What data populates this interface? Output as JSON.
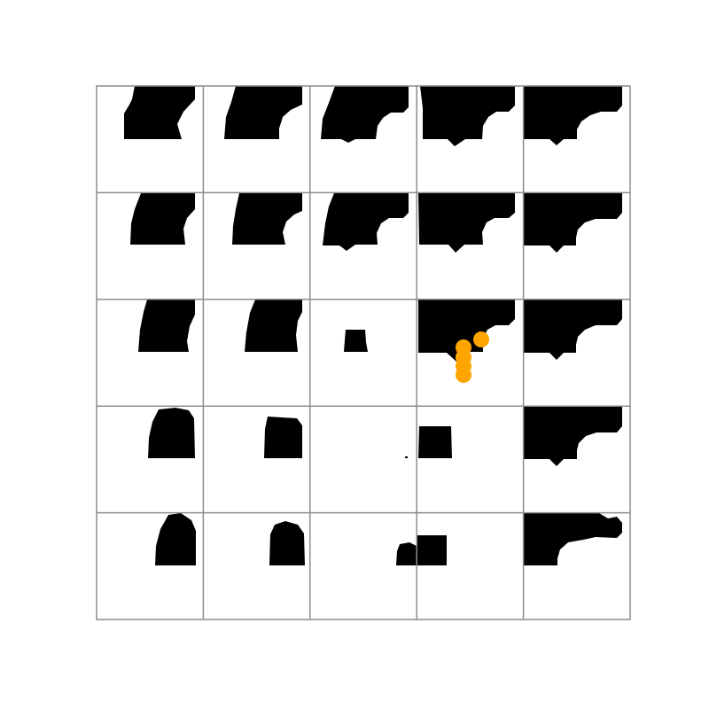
{
  "figure": {
    "grid_rows": 5,
    "grid_cols": 5,
    "background": "#ffffff",
    "mask_color": "#000000",
    "border_color": "#8c8c8c",
    "marker_color": "#ffa500",
    "marker_cell": {
      "row": 2,
      "col": 3
    },
    "marker_count": 5
  }
}
